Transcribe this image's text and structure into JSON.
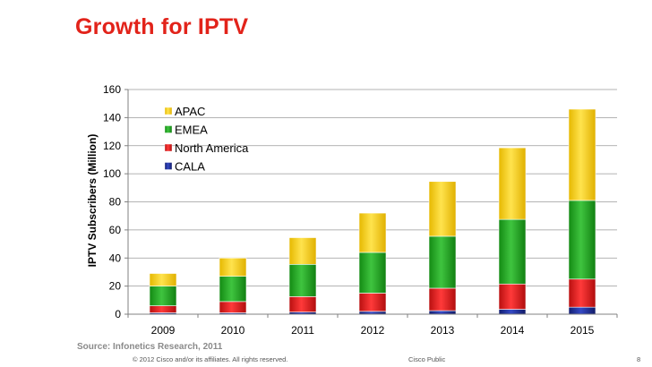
{
  "slide": {
    "title": "Growth for IPTV",
    "source": "Source: Infonetics Research, 2011",
    "footer_copyright": "© 2012 Cisco and/or its affiliates. All rights reserved.",
    "footer_classification": "Cisco Public",
    "page_number": "8"
  },
  "colors": {
    "title": "#e2231a",
    "APAC": "#ffd400",
    "EMEA": "#1fa51f",
    "North America": "#e21a1a",
    "CALA": "#1f2f9e"
  },
  "chart_data": {
    "type": "bar",
    "stacked": true,
    "title": "",
    "xlabel": "",
    "ylabel": "IPTV Subscribers (Million)",
    "ylim": [
      0,
      160
    ],
    "yticks": [
      0,
      20,
      40,
      60,
      80,
      100,
      120,
      140,
      160
    ],
    "grid": true,
    "legend": "top-left",
    "legend_order": [
      "APAC",
      "EMEA",
      "North America",
      "CALA"
    ],
    "categories": [
      "2009",
      "2010",
      "2011",
      "2012",
      "2013",
      "2014",
      "2015"
    ],
    "series": [
      {
        "name": "CALA",
        "values": [
          1,
          1,
          1.5,
          2,
          2.5,
          3.5,
          5
        ]
      },
      {
        "name": "North America",
        "values": [
          5,
          8,
          11,
          13,
          16,
          18,
          20
        ]
      },
      {
        "name": "EMEA",
        "values": [
          14,
          18,
          23,
          29,
          37,
          46,
          56
        ]
      },
      {
        "name": "APAC",
        "values": [
          9,
          13,
          19,
          28,
          39,
          51,
          65
        ]
      }
    ]
  }
}
